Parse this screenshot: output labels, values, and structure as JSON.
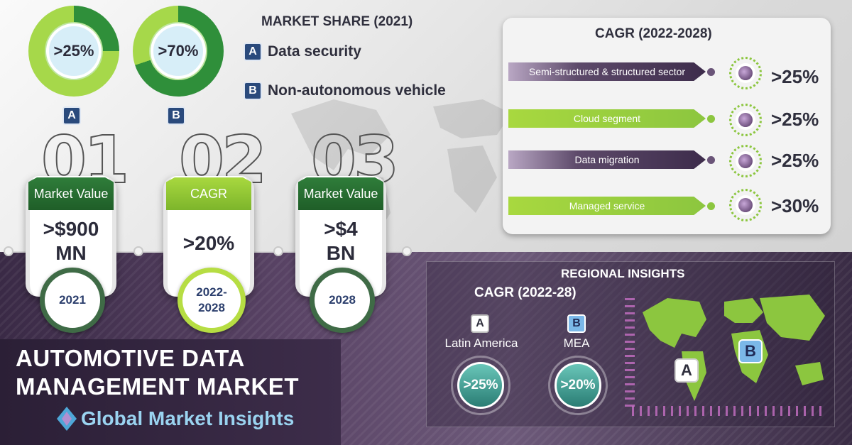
{
  "market_share": {
    "title": "MARKET SHARE (2021)",
    "items": [
      {
        "letter": "A",
        "label": "Data security",
        "value": ">25%"
      },
      {
        "letter": "B",
        "label": "Non-autonomous vehicle",
        "value": ">70%"
      }
    ]
  },
  "cards": [
    {
      "number": "01",
      "tab": "Market Value",
      "value_line1": ">$900",
      "value_line2": "MN",
      "year": "2021"
    },
    {
      "number": "02",
      "tab": "CAGR",
      "value_line1": ">20%",
      "value_line2": "",
      "year": "2022-2028"
    },
    {
      "number": "03",
      "tab": "Market Value",
      "value_line1": ">$4",
      "value_line2": "BN",
      "year": "2028"
    }
  ],
  "cagr_panel": {
    "title": "CAGR (2022-2028)",
    "segments": [
      {
        "label": "Semi-structured & structured sector",
        "value": ">25%",
        "style": "purple"
      },
      {
        "label": "Cloud segment",
        "value": ">25%",
        "style": "green"
      },
      {
        "label": "Data migration",
        "value": ">25%",
        "style": "purple"
      },
      {
        "label": "Managed service",
        "value": ">30%",
        "style": "green"
      }
    ]
  },
  "regional": {
    "title": "REGIONAL INSIGHTS",
    "cagr_label": "CAGR (2022-28)",
    "regions": [
      {
        "letter": "A",
        "name": "Latin America",
        "value": ">25%"
      },
      {
        "letter": "B",
        "name": "MEA",
        "value": ">20%"
      }
    ],
    "map_markers": [
      "A",
      "B"
    ]
  },
  "report": {
    "title": "AUTOMOTIVE DATA MANAGEMENT MARKET"
  },
  "brand": {
    "name": "Global Market Insights"
  },
  "colors": {
    "green_dark": "#2f7d3a",
    "green_light": "#8cc63f",
    "purple_dark": "#3d2c4b",
    "navy": "#2a4a7c",
    "teal": "#2a7d74"
  }
}
